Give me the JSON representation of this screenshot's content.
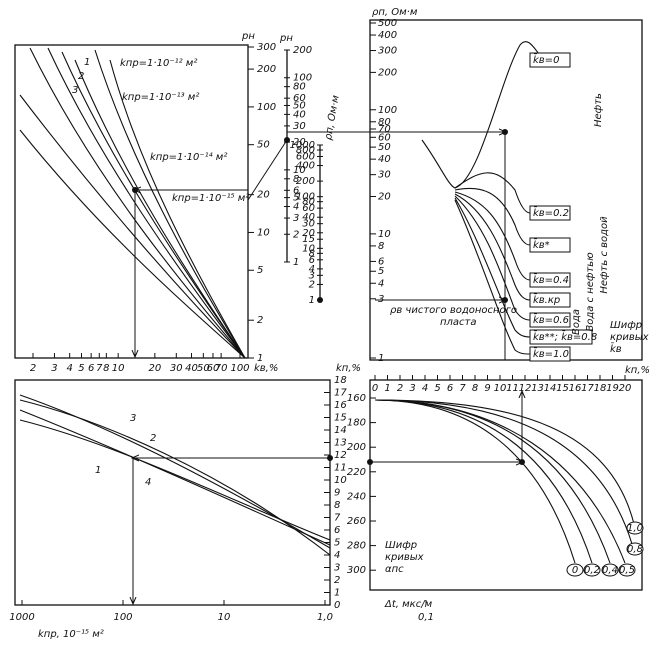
{
  "panel_a": {
    "y_axis_label": "pн",
    "y_ticks": [
      "300",
      "200",
      "100",
      "50",
      "20",
      "10",
      "5",
      "2",
      "1"
    ],
    "x_axis_label": "kв,%",
    "x_ticks": [
      "2",
      "3",
      "4",
      "5",
      "6",
      "7",
      "8",
      "10",
      "20",
      "30",
      "40",
      "50",
      "60",
      "70",
      "100"
    ],
    "curve_labels": [
      "kпр=1·10⁻¹² м²",
      "kпр=1·10⁻¹³ м²",
      "kпр=1·10⁻¹⁴ м²",
      "kпр=1·10⁻¹⁵ м²"
    ],
    "curve_numbers": [
      "1",
      "2",
      "3"
    ]
  },
  "scale_pn": {
    "label": "pн",
    "ticks": [
      "200",
      "100",
      "80",
      "60",
      "50",
      "40",
      "30",
      "20",
      "10",
      "8",
      "6",
      "5",
      "4",
      "3",
      "2",
      "1"
    ]
  },
  "scale_rho": {
    "label": "ρп, Ом·м",
    "ticks": [
      "1000",
      "800",
      "600",
      "400",
      "200",
      "100",
      "80",
      "60",
      "40",
      "30",
      "20",
      "15",
      "10",
      "8",
      "6",
      "4",
      "3",
      "2",
      "1"
    ]
  },
  "panel_b": {
    "y_axis_label": "ρп, Ом·м",
    "y_ticks": [
      "500",
      "400",
      "300",
      "200",
      "100",
      "80",
      "70",
      "60",
      "50",
      "40",
      "30",
      "20",
      "10",
      "8",
      "6",
      "5",
      "4",
      "3",
      "1"
    ],
    "curve_labels": [
      "k̄в=0",
      "k̄в=0.2",
      "k̄в*",
      "k̄в=0.4",
      "k̄в.кр",
      "k̄в=0.6",
      "k̄в**; k̄в=0.8",
      "k̄в=1.0"
    ],
    "zone_labels": [
      "Нефть",
      "Нефть с водой",
      "Вода с нефтью",
      "Вода"
    ],
    "legend": [
      "Шифр",
      "кривых",
      "k̄в"
    ],
    "note": [
      "ρв чистого водоносного",
      "пласта"
    ]
  },
  "panel_c": {
    "y_axis_label": "kп,%",
    "y_ticks": [
      "18",
      "17",
      "16",
      "15",
      "14",
      "13",
      "12",
      "11",
      "10",
      "9",
      "8",
      "7",
      "6",
      "5",
      "4",
      "3",
      "2",
      "1",
      "0"
    ],
    "x_axis_label": "kпр, 10⁻¹⁵ м²",
    "x_ticks": [
      "1000",
      "100",
      "10",
      "1,0",
      "0,1"
    ],
    "curve_numbers": [
      "1",
      "2",
      "3",
      "4"
    ]
  },
  "panel_d": {
    "x_axis_label": "kп,%",
    "x_ticks": [
      "0",
      "1",
      "2",
      "3",
      "4",
      "5",
      "6",
      "7",
      "8",
      "9",
      "10",
      "11",
      "12",
      "13",
      "14",
      "15",
      "16",
      "17",
      "18",
      "19",
      "20"
    ],
    "y_axis_label": "Δt, мкс/м",
    "y_ticks": [
      "160",
      "180",
      "200",
      "220",
      "240",
      "260",
      "280",
      "300"
    ],
    "curve_labels": [
      "0",
      "0,2",
      "0,4",
      "0,5",
      "0,8",
      "1,0"
    ],
    "legend": [
      "Шифр",
      "кривых",
      "αпс"
    ]
  }
}
